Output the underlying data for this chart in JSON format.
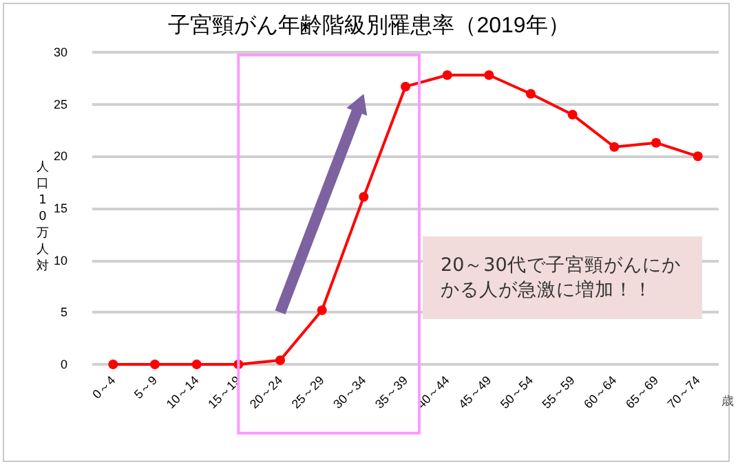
{
  "chart_data": {
    "type": "line",
    "title": "子宮頸がん年齢階級別罹患率（2019年）",
    "xlabel": "歳",
    "ylabel": "人口10万人対",
    "categories": [
      "0～4",
      "5～9",
      "10～14",
      "15～19",
      "20～24",
      "25～29",
      "30～34",
      "35～39",
      "40～44",
      "45～49",
      "50～54",
      "55～59",
      "60～64",
      "65～69",
      "70～74"
    ],
    "series": [
      {
        "color": "#ff0000",
        "values": [
          0,
          0,
          0,
          0,
          0.4,
          5.2,
          16.1,
          26.7,
          27.8,
          27.8,
          26.0,
          24.0,
          20.9,
          21.3,
          20.0
        ]
      }
    ],
    "ylim": [
      0,
      30
    ],
    "yticks": [
      0,
      5,
      10,
      15,
      20,
      25,
      30
    ],
    "grid": "y",
    "marker": "circle",
    "line_style": "solid",
    "annotations": [
      "20～30代で子宮頸がんにかかる人が急激に増加！！"
    ]
  }
}
